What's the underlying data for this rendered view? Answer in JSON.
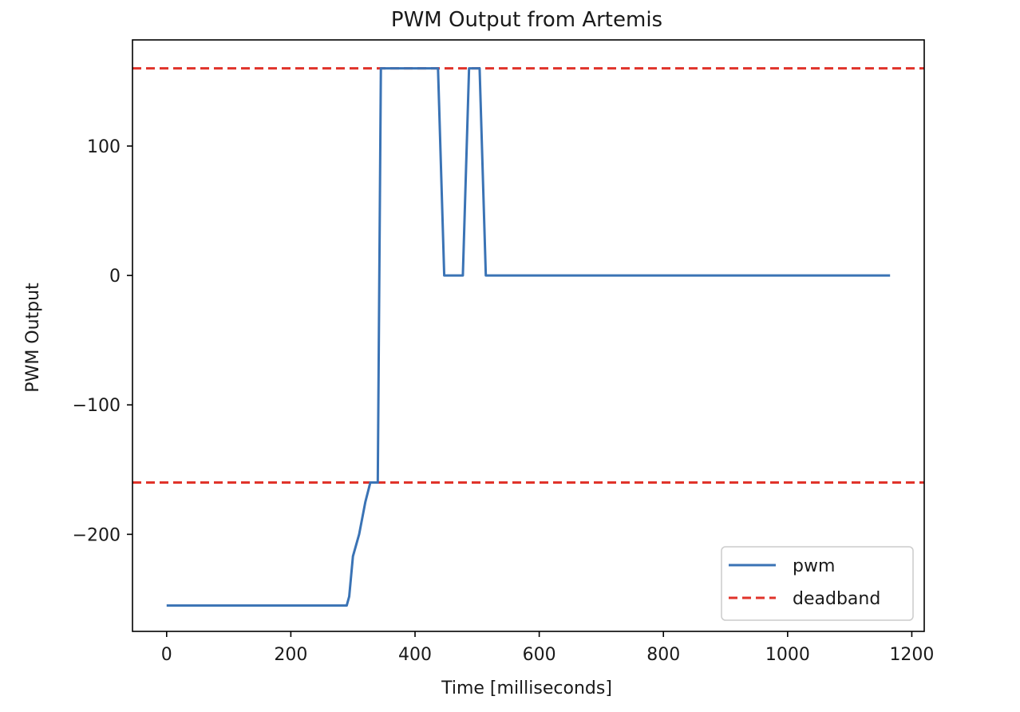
{
  "chart_data": {
    "type": "line",
    "title": "PWM Output from Artemis",
    "xlabel": "Time [milliseconds]",
    "ylabel": "PWM Output",
    "xlim": [
      -55,
      1220
    ],
    "ylim": [
      -275,
      182
    ],
    "xticks": [
      0,
      200,
      400,
      600,
      800,
      1000,
      1200
    ],
    "xtick_labels": [
      "0",
      "200",
      "400",
      "600",
      "800",
      "1000",
      "1200"
    ],
    "yticks": [
      100,
      0,
      -100,
      -200
    ],
    "ytick_labels": [
      "100",
      "0",
      "−100",
      "−200"
    ],
    "grid": false,
    "legend_position": "lower-right",
    "series": [
      {
        "name": "pwm",
        "style": "solid",
        "color": "#3a73b5",
        "x": [
          0,
          290,
          294,
          300,
          310,
          320,
          328,
          335,
          340,
          345,
          350,
          360,
          370,
          380,
          390,
          400,
          410,
          420,
          430,
          437,
          447,
          457,
          467,
          477,
          487,
          497,
          504,
          514,
          524,
          600,
          700,
          800,
          900,
          1000,
          1100,
          1165
        ],
        "y": [
          -255,
          -255,
          -248,
          -217,
          -200,
          -175,
          -160,
          -160,
          -160,
          160,
          160,
          160,
          160,
          160,
          160,
          160,
          160,
          160,
          160,
          160,
          0,
          0,
          0,
          0,
          160,
          160,
          160,
          0,
          0,
          0,
          0,
          0,
          0,
          0,
          0,
          0
        ]
      },
      {
        "name": "deadband",
        "style": "dashed",
        "color": "#e0332a",
        "hlines": [
          160,
          -160
        ]
      }
    ]
  }
}
